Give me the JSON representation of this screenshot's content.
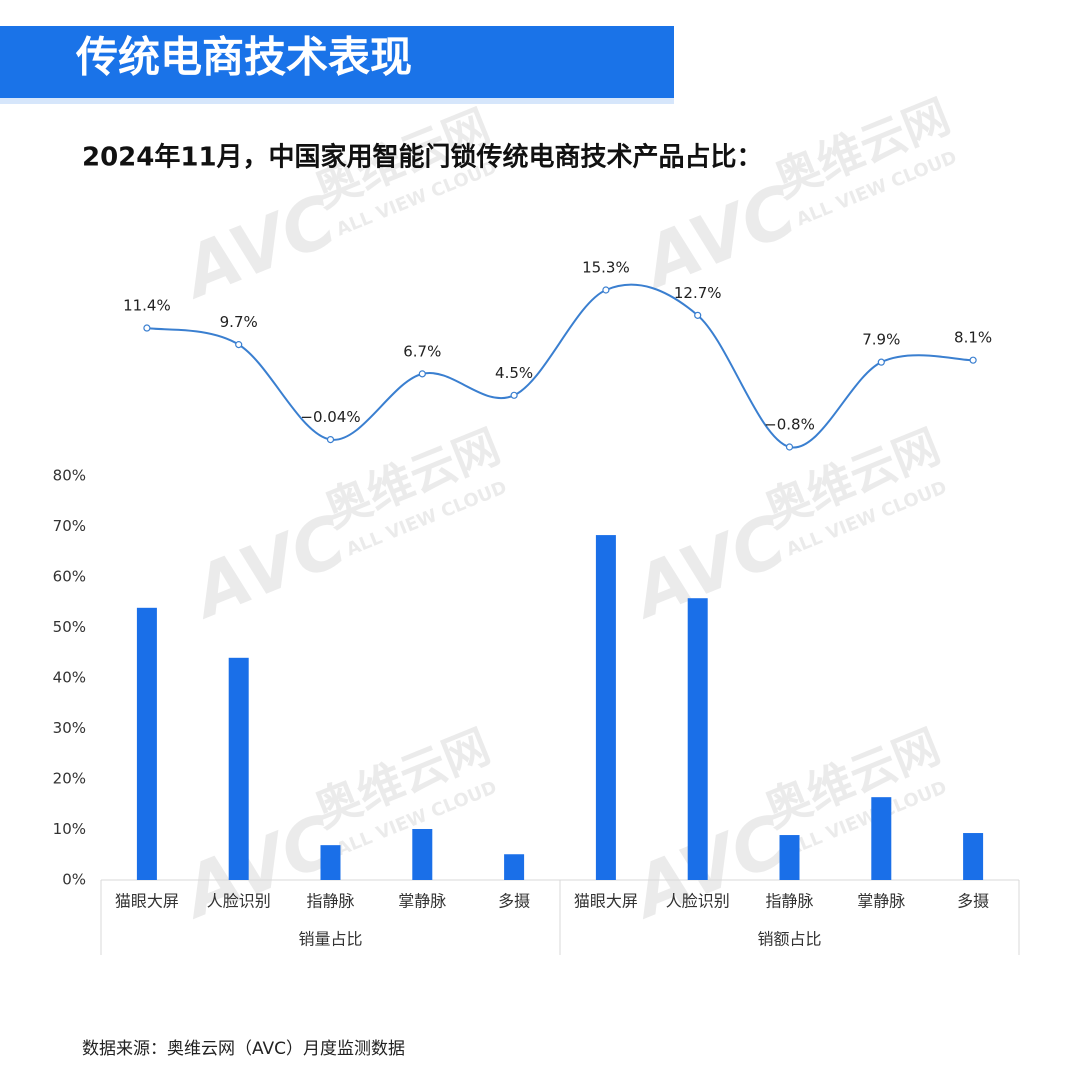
{
  "header": {
    "title": "传统电商技术表现"
  },
  "subtitle": "2024年11月，中国家用智能门锁传统电商技术产品占比：",
  "source": "数据来源：奥维云网（AVC）月度监测数据",
  "watermark": {
    "logo": "AVC",
    "name": "奥维云网",
    "tagline": "ALL VIEW CLOUD"
  },
  "chart_data": [
    {
      "type": "line",
      "color": "#3a7fd0",
      "values": [
        11.4,
        9.7,
        -0.04,
        6.7,
        4.5,
        15.3,
        12.7,
        -0.8,
        7.9,
        8.1
      ],
      "value_labels": [
        "11.4%",
        "9.7%",
        "−0.04%",
        "6.7%",
        "4.5%",
        "15.3%",
        "12.7%",
        "−0.8%",
        "7.9%",
        "8.1%"
      ]
    },
    {
      "type": "bar",
      "color": "#1a6fe8",
      "ylim": [
        0,
        80
      ],
      "yticks": [
        {
          "value": 0,
          "label": "0%"
        },
        {
          "value": 10,
          "label": "10%"
        },
        {
          "value": 20,
          "label": "20%"
        },
        {
          "value": 30,
          "label": "30%"
        },
        {
          "value": 40,
          "label": "40%"
        },
        {
          "value": 50,
          "label": "50%"
        },
        {
          "value": 60,
          "label": "60%"
        },
        {
          "value": 70,
          "label": "70%"
        },
        {
          "value": 80,
          "label": "80%"
        }
      ],
      "groups": [
        {
          "name": "销量占比",
          "categories": [
            "猫眼大屏",
            "人脸识别",
            "指静脉",
            "掌静脉",
            "多摄"
          ],
          "values": [
            53.9,
            44,
            6.9,
            10.1,
            5.1
          ]
        },
        {
          "name": "销额占比",
          "categories": [
            "猫眼大屏",
            "人脸识别",
            "指静脉",
            "掌静脉",
            "多摄"
          ],
          "values": [
            68.3,
            55.8,
            8.9,
            16.4,
            9.3
          ]
        }
      ]
    }
  ]
}
